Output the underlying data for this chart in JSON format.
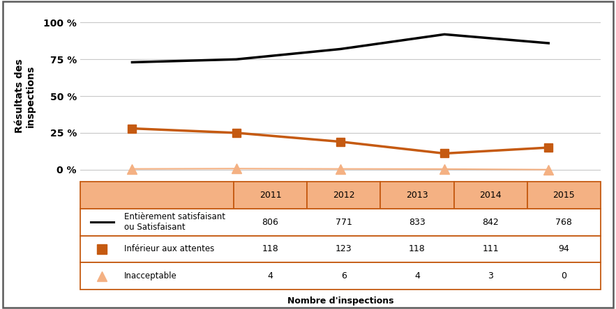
{
  "years": [
    2011,
    2012,
    2013,
    2014,
    2015
  ],
  "satisfaisant_pct": [
    73,
    75,
    82,
    92,
    86
  ],
  "inferieur_pct": [
    28,
    25,
    19,
    11,
    15
  ],
  "inacceptable_pct": [
    0.5,
    0.7,
    0.5,
    0.4,
    0.0
  ],
  "satisfaisant_counts": [
    806,
    771,
    833,
    842,
    768
  ],
  "inferieur_counts": [
    118,
    123,
    118,
    111,
    94
  ],
  "inacceptable_counts": [
    4,
    6,
    4,
    3,
    0
  ],
  "black_color": "#000000",
  "orange_color": "#c55a11",
  "triangle_color": "#f4b183",
  "table_header_bg": "#f4b183",
  "table_border_color": "#c55a11",
  "ylabel": "Résultats des\ninspections",
  "xlabel": "Nombre d'inspections",
  "yticks": [
    0,
    25,
    50,
    75,
    100
  ],
  "yticklabels": [
    "0 %",
    "25 %",
    "50 %",
    "75 %",
    "100 %"
  ],
  "legend_satisfaisant": "Entièrement satisfaisant\nou Satisfaisant",
  "legend_inferieur": "Inférieur aux attentes",
  "legend_inacceptable": "Inacceptable",
  "border_color": "#5a5a5a"
}
